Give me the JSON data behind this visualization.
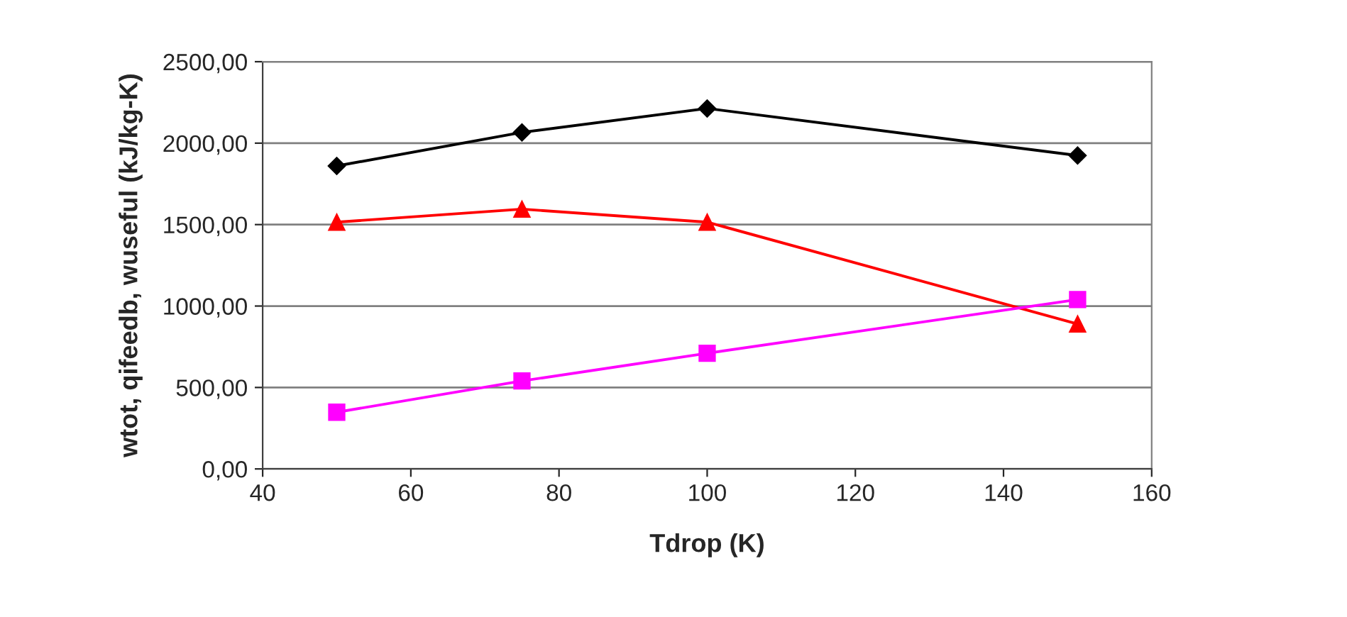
{
  "chart_data": {
    "type": "line",
    "xlabel": "Tdrop (K)",
    "ylabel": "wtot, qifeedb, wuseful (kJ/kg-K)",
    "x": [
      50,
      75,
      100,
      150
    ],
    "series": [
      {
        "color": "#000000",
        "marker": "diamond",
        "values": [
          1860,
          2066,
          2213,
          1924
        ]
      },
      {
        "color": "#ff0000",
        "marker": "triangle",
        "values": [
          1515,
          1595,
          1515,
          890
        ]
      },
      {
        "color": "#ff00ff",
        "marker": "square",
        "values": [
          348,
          540,
          710,
          1040
        ]
      }
    ],
    "xlim": [
      40,
      160
    ],
    "xticks": [
      40,
      60,
      80,
      100,
      120,
      140,
      160
    ],
    "ylim": [
      0,
      2500
    ],
    "yticks": [
      {
        "value": 0,
        "label": "0,00"
      },
      {
        "value": 500,
        "label": "500,00"
      },
      {
        "value": 1000,
        "label": "1000,00"
      },
      {
        "value": 1500,
        "label": "1500,00"
      },
      {
        "value": 2000,
        "label": "2000,00"
      },
      {
        "value": 2500,
        "label": "2500,00"
      }
    ],
    "grid": "y",
    "legend": false
  }
}
